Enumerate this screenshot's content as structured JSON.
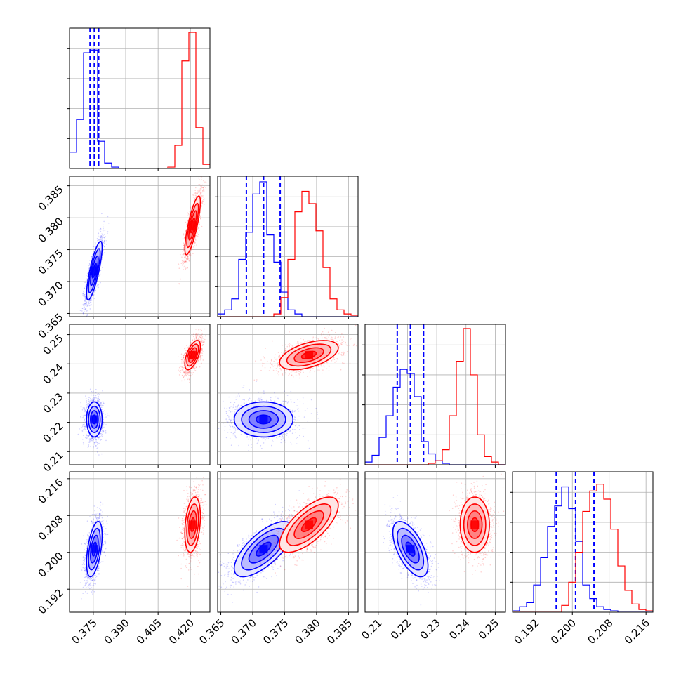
{
  "chart_data": {
    "type": "corner",
    "title": "",
    "grid": true,
    "series_colors": {
      "blue": "#0000ff",
      "red": "#ff0000"
    },
    "variables": [
      {
        "range": [
          0.364,
          0.429
        ],
        "ticks": [
          0.375,
          0.39,
          0.405,
          0.42
        ],
        "tick_labels": [
          "0.375",
          "0.390",
          "0.405",
          "0.420"
        ]
      },
      {
        "range": [
          0.3645,
          0.3865
        ],
        "ticks": [
          0.365,
          0.37,
          0.375,
          0.38,
          0.385
        ],
        "tick_labels": [
          "0.365",
          "0.370",
          "0.375",
          "0.380",
          "0.385"
        ]
      },
      {
        "range": [
          0.2055,
          0.2535
        ],
        "ticks": [
          0.21,
          0.22,
          0.23,
          0.24,
          0.25
        ],
        "tick_labels": [
          "0.21",
          "0.22",
          "0.23",
          "0.24",
          "0.25"
        ]
      },
      {
        "range": [
          0.187,
          0.2175
        ],
        "ticks": [
          0.192,
          0.2,
          0.208,
          0.216
        ],
        "tick_labels": [
          "0.192",
          "0.200",
          "0.208",
          "0.216"
        ]
      }
    ],
    "series": [
      {
        "color": "#0000ff",
        "mean": [
          0.3755,
          0.3717,
          0.221,
          0.2007
        ],
        "std": [
          0.0018,
          0.0023,
          0.003,
          0.003
        ],
        "corr": [
          [
            1,
            0.8,
            0,
            0.5
          ],
          [
            0.8,
            1,
            0,
            0.7
          ],
          [
            0,
            0,
            1,
            -0.6
          ],
          [
            0.5,
            0.7,
            -0.6,
            1
          ]
        ],
        "quantiles": [
          [
            0.3735,
            0.3755,
            0.3775
          ],
          [
            0.369,
            0.3717,
            0.3743
          ],
          [
            0.2165,
            0.221,
            0.2255
          ],
          [
            0.1965,
            0.2007,
            0.2047
          ]
        ],
        "hist": [
          {
            "edges": [
              0.364,
              0.429
            ],
            "counts": [
              0.12,
              0.36,
              0.85,
              0.87,
              0.2,
              0.04,
              0.01,
              0,
              0,
              0,
              0,
              0,
              0,
              0,
              0,
              0,
              0,
              0,
              0,
              0
            ]
          },
          {
            "edges": [
              0.3645,
              0.3865
            ],
            "counts": [
              0.02,
              0.05,
              0.13,
              0.42,
              0.62,
              0.9,
              0.99,
              0.6,
              0.4,
              0.18,
              0.05,
              0.02,
              0,
              0,
              0,
              0,
              0,
              0,
              0,
              0
            ]
          },
          {
            "edges": [
              0.2055,
              0.2535
            ],
            "counts": [
              0.02,
              0.07,
              0.2,
              0.36,
              0.57,
              0.7,
              0.67,
              0.5,
              0.17,
              0.08,
              0.03,
              0.01,
              0,
              0,
              0,
              0,
              0,
              0,
              0,
              0
            ]
          },
          {
            "edges": [
              0.187,
              0.2175
            ],
            "counts": [
              0.01,
              0.04,
              0.07,
              0.2,
              0.4,
              0.63,
              0.78,
              0.92,
              0.76,
              0.52,
              0.2,
              0.1,
              0.04,
              0.02,
              0.01,
              0,
              0,
              0,
              0,
              0
            ]
          }
        ]
      },
      {
        "color": "#ff0000",
        "mean": [
          0.421,
          0.3788,
          0.243,
          0.206
        ],
        "std": [
          0.0018,
          0.0023,
          0.0025,
          0.003
        ],
        "corr": [
          [
            1,
            0.8,
            0.6,
            0.3
          ],
          [
            0.8,
            1,
            0.5,
            0.7
          ],
          [
            0.6,
            0.5,
            1,
            0
          ],
          [
            0.3,
            0.7,
            0,
            1
          ]
        ],
        "quantiles": null,
        "hist": [
          {
            "edges": [
              0.364,
              0.429
            ],
            "counts": [
              0,
              0,
              0,
              0,
              0,
              0,
              0,
              0,
              0,
              0,
              0,
              0,
              0,
              0,
              0.01,
              0.17,
              0.79,
              1.0,
              0.3,
              0.03
            ]
          },
          {
            "edges": [
              0.3645,
              0.3865
            ],
            "counts": [
              0,
              0,
              0,
              0,
              0,
              0,
              0,
              0,
              0.02,
              0.14,
              0.42,
              0.77,
              0.92,
              0.83,
              0.63,
              0.36,
              0.13,
              0.05,
              0.02,
              0.01
            ]
          },
          {
            "edges": [
              0.2055,
              0.2535
            ],
            "counts": [
              0,
              0,
              0,
              0,
              0,
              0,
              0,
              0,
              0,
              0.01,
              0.03,
              0.11,
              0.36,
              0.76,
              1.0,
              0.66,
              0.22,
              0.06,
              0.02,
              0
            ]
          },
          {
            "edges": [
              0.187,
              0.2175
            ],
            "counts": [
              0,
              0,
              0,
              0,
              0,
              0,
              0,
              0.05,
              0.22,
              0.44,
              0.74,
              0.89,
              0.94,
              0.83,
              0.61,
              0.34,
              0.16,
              0.06,
              0.02,
              0.01
            ]
          }
        ]
      }
    ]
  }
}
